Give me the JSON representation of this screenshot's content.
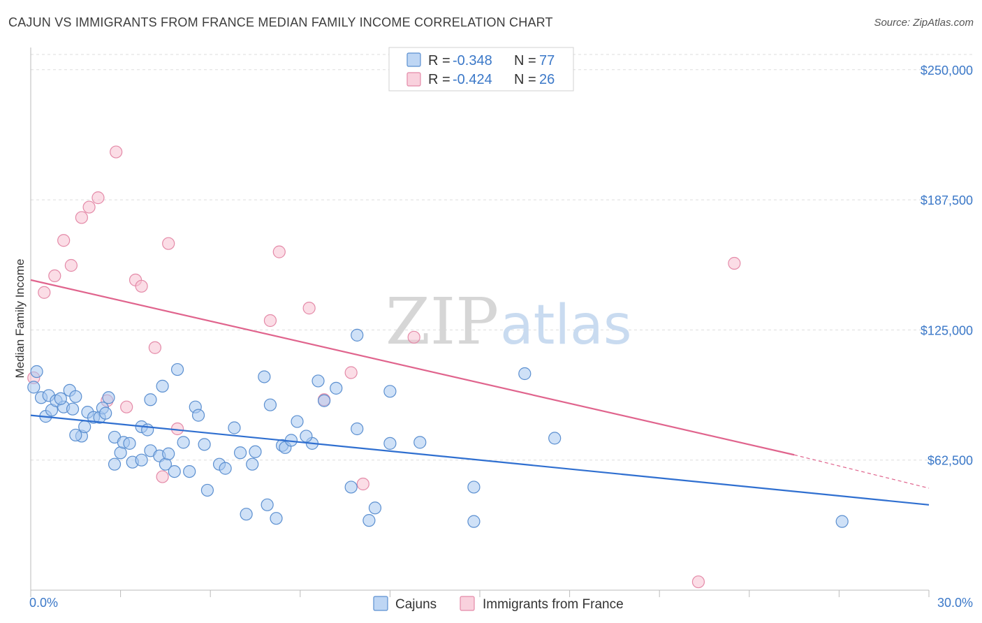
{
  "header": {
    "title": "CAJUN VS IMMIGRANTS FROM FRANCE MEDIAN FAMILY INCOME CORRELATION CHART",
    "source": "Source: ZipAtlas.com"
  },
  "legend": {
    "rows": [
      {
        "r_label": "R =",
        "r_value": "-0.348",
        "n_label": "N =",
        "n_value": "77"
      },
      {
        "r_label": "R =",
        "r_value": "-0.424",
        "n_label": "N =",
        "n_value": "26"
      }
    ]
  },
  "watermark": {
    "zip": "ZIP",
    "atlas": "atlas"
  },
  "colors": {
    "cajuns_fill": "#a8c8f0",
    "cajuns_stroke": "#5b8fd0",
    "cajuns_line": "#2f6fd0",
    "france_fill": "#f7c1d1",
    "france_stroke": "#e48aa8",
    "france_line": "#e0648d",
    "grid": "#dddddd",
    "axis_text": "#3b78c8"
  },
  "chart_data": {
    "type": "scatter",
    "title": "CAJUN VS IMMIGRANTS FROM FRANCE MEDIAN FAMILY INCOME CORRELATION CHART",
    "xlabel": "",
    "ylabel": "Median Family Income",
    "xlim": [
      0,
      30
    ],
    "ylim": [
      0,
      260000
    ],
    "x_tick_labels": [
      "0.0%",
      "30.0%"
    ],
    "y_ticks": [
      {
        "value": 62500,
        "label": "$62,500"
      },
      {
        "value": 125000,
        "label": "$125,000"
      },
      {
        "value": 187500,
        "label": "$187,500"
      },
      {
        "value": 250000,
        "label": "$250,000"
      }
    ],
    "series": [
      {
        "name": "Cajuns",
        "r": -0.348,
        "n": 77,
        "trend": {
          "x0": 0,
          "y0": 84000,
          "x1": 30,
          "y1": 41000
        },
        "points": [
          [
            0.1,
            97500
          ],
          [
            0.2,
            105000
          ],
          [
            0.35,
            92500
          ],
          [
            0.5,
            83500
          ],
          [
            0.6,
            93500
          ],
          [
            0.7,
            86500
          ],
          [
            0.85,
            91000
          ],
          [
            1.1,
            88000
          ],
          [
            1.0,
            92000
          ],
          [
            1.4,
            87000
          ],
          [
            1.3,
            96000
          ],
          [
            1.5,
            93000
          ],
          [
            1.7,
            74000
          ],
          [
            1.8,
            78500
          ],
          [
            1.5,
            74500
          ],
          [
            1.9,
            85500
          ],
          [
            2.1,
            83000
          ],
          [
            2.3,
            83000
          ],
          [
            2.4,
            87500
          ],
          [
            2.5,
            85000
          ],
          [
            2.6,
            92500
          ],
          [
            2.8,
            73500
          ],
          [
            2.8,
            60500
          ],
          [
            3.0,
            66000
          ],
          [
            3.1,
            71000
          ],
          [
            3.3,
            70500
          ],
          [
            3.4,
            61500
          ],
          [
            3.7,
            62500
          ],
          [
            3.7,
            78500
          ],
          [
            3.9,
            77000
          ],
          [
            4.0,
            91500
          ],
          [
            4.0,
            67000
          ],
          [
            4.3,
            64500
          ],
          [
            4.4,
            98000
          ],
          [
            4.5,
            60500
          ],
          [
            4.6,
            65500
          ],
          [
            4.8,
            57000
          ],
          [
            4.9,
            106000
          ],
          [
            5.1,
            71000
          ],
          [
            5.3,
            57000
          ],
          [
            5.5,
            88000
          ],
          [
            5.6,
            84000
          ],
          [
            5.8,
            70000
          ],
          [
            5.9,
            48000
          ],
          [
            6.3,
            60500
          ],
          [
            6.5,
            58500
          ],
          [
            6.8,
            78000
          ],
          [
            7.0,
            66000
          ],
          [
            7.2,
            36500
          ],
          [
            7.4,
            60500
          ],
          [
            7.5,
            66500
          ],
          [
            7.8,
            102500
          ],
          [
            7.9,
            41000
          ],
          [
            8.0,
            89000
          ],
          [
            8.2,
            34500
          ],
          [
            8.4,
            69500
          ],
          [
            8.5,
            68500
          ],
          [
            8.7,
            72000
          ],
          [
            8.9,
            81000
          ],
          [
            9.4,
            70500
          ],
          [
            9.6,
            100500
          ],
          [
            9.8,
            91000
          ],
          [
            10.2,
            97000
          ],
          [
            10.7,
            49500
          ],
          [
            10.9,
            77500
          ],
          [
            10.9,
            122500
          ],
          [
            11.3,
            33500
          ],
          [
            11.5,
            39500
          ],
          [
            12.0,
            70500
          ],
          [
            12.0,
            95500
          ],
          [
            13.0,
            71000
          ],
          [
            14.8,
            49500
          ],
          [
            14.8,
            33000
          ],
          [
            16.5,
            104000
          ],
          [
            17.5,
            73000
          ],
          [
            27.1,
            33000
          ],
          [
            9.2,
            74000
          ]
        ]
      },
      {
        "name": "Immigrants from France",
        "r": -0.424,
        "n": 26,
        "trend": {
          "x0": 0,
          "y0": 149000,
          "x1": 25.5,
          "y1": 65000
        },
        "trend_dashed": {
          "x0": 25.5,
          "y0": 65000,
          "x1": 30,
          "y1": 49000
        },
        "points": [
          [
            0.1,
            102000
          ],
          [
            0.45,
            143000
          ],
          [
            0.8,
            151000
          ],
          [
            1.1,
            168000
          ],
          [
            1.35,
            156000
          ],
          [
            1.7,
            179000
          ],
          [
            1.95,
            184000
          ],
          [
            2.25,
            188500
          ],
          [
            2.55,
            91000
          ],
          [
            2.85,
            210500
          ],
          [
            3.2,
            88000
          ],
          [
            3.5,
            149000
          ],
          [
            3.7,
            146000
          ],
          [
            4.15,
            116500
          ],
          [
            4.4,
            54500
          ],
          [
            4.6,
            166500
          ],
          [
            4.9,
            77500
          ],
          [
            8.0,
            129500
          ],
          [
            8.3,
            162500
          ],
          [
            9.3,
            135500
          ],
          [
            9.8,
            91500
          ],
          [
            10.7,
            104500
          ],
          [
            11.1,
            51000
          ],
          [
            12.8,
            121500
          ],
          [
            22.3,
            4000
          ],
          [
            23.5,
            157000
          ]
        ]
      }
    ]
  },
  "bottom_legend": {
    "items": [
      {
        "label": "Cajuns"
      },
      {
        "label": "Immigrants from France"
      }
    ]
  }
}
